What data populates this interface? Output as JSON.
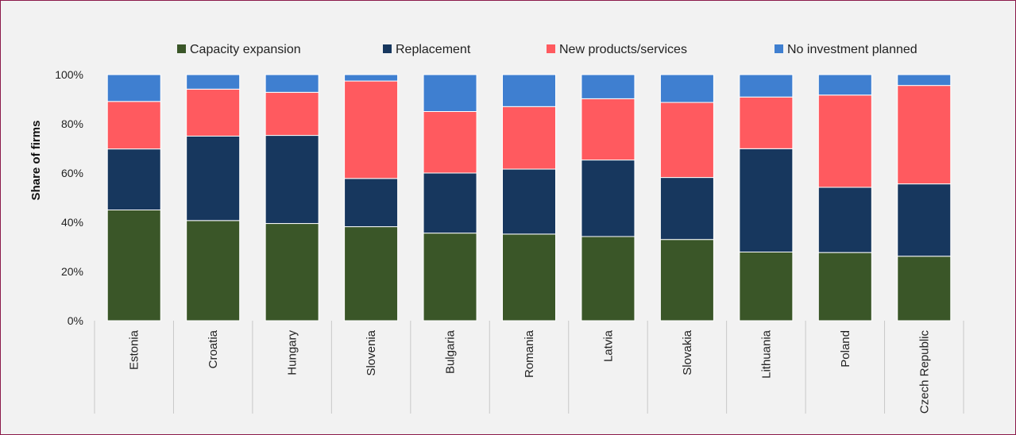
{
  "chart_data": {
    "type": "bar",
    "stacked": true,
    "ylabel": "Share of firms",
    "xlabel": "",
    "ylim": [
      0,
      100
    ],
    "yticks": [
      "0%",
      "20%",
      "40%",
      "60%",
      "80%",
      "100%"
    ],
    "legend_position": "top",
    "categories": [
      "Estonia",
      "Croatia",
      "Hungary",
      "Slovenia",
      "Bulgaria",
      "Romania",
      "Latvia",
      "Slovakia",
      "Lithuania",
      "Poland",
      "Czech Republic"
    ],
    "series": [
      {
        "name": "Capacity expansion",
        "color": "#3a5628",
        "values": [
          45,
          40.7,
          39.5,
          38.2,
          35.6,
          35.2,
          34.2,
          33,
          27.9,
          27.7,
          26.2
        ]
      },
      {
        "name": "Replacement",
        "color": "#17375e",
        "values": [
          24.8,
          34.3,
          35.8,
          19.6,
          24.4,
          26.4,
          31.1,
          25.2,
          42,
          26.5,
          29.4
        ]
      },
      {
        "name": "New products/services",
        "color": "#ff5a5f",
        "values": [
          19.3,
          19.1,
          17.5,
          39.6,
          25,
          25.4,
          24.9,
          30.5,
          21,
          37.5,
          40
        ]
      },
      {
        "name": "No investment planned",
        "color": "#3f7fd0",
        "values": [
          10.9,
          5.9,
          7.2,
          2.6,
          15,
          13,
          9.8,
          11.3,
          9.1,
          8.3,
          4.4
        ]
      }
    ]
  }
}
